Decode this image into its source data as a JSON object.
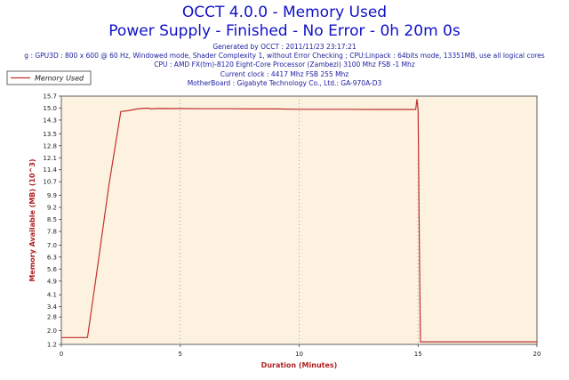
{
  "header": {
    "title": "OCCT 4.0.0 - Memory Used",
    "subtitle": "Power Supply - Finished - No Error - 0h 20m 0s",
    "generated": "Generated by OCCT : 2011/11/23 23:17:21",
    "config": "g : GPU3D : 800 x 600 @ 60 Hz, Windowed mode, Shader Complexity 1, without Error Checking ; CPU:Linpack : 64bits mode, 13351MB, use all logical cores",
    "cpu": "CPU : AMD FX(tm)-8120 Eight-Core Processor (Zambezi) 3100 Mhz FSB -1 Mhz",
    "clock": "Current clock : 4417 Mhz FSB 255 Mhz",
    "motherboard": "MotherBoard : Gigabyte Technology Co., Ltd.: GA-970A-D3"
  },
  "colors": {
    "title": "#1010c8",
    "plot_bg": "#fdf2e0",
    "line": "#c03030",
    "axis_label": "#b02020"
  },
  "chart_data": {
    "type": "line",
    "xlabel": "Duration (Minutes)",
    "ylabel": "Memory Available (MB) (10^3)",
    "xlim": [
      0,
      20
    ],
    "ylim": [
      1.2,
      15.7
    ],
    "x_ticks": [
      "0",
      "5",
      "10",
      "15",
      "20"
    ],
    "y_ticks": [
      "1.2",
      "2.0",
      "2.8",
      "3.4",
      "4.1",
      "4.9",
      "5.6",
      "6.3",
      "7.0",
      "7.8",
      "8.5",
      "9.2",
      "9.9",
      "10.7",
      "11.4",
      "12.1",
      "12.8",
      "13.5",
      "14.3",
      "15.0",
      "15.7"
    ],
    "grid": "vertical dotted at 5, 10, 15",
    "legend": "top-left",
    "series": [
      {
        "name": "Memory Used",
        "x": [
          0,
          1.0,
          1.1,
          1.5,
          2.0,
          2.5,
          2.8,
          3.2,
          3.6,
          3.8,
          4.0,
          5.0,
          6.0,
          7.0,
          8.0,
          9.0,
          10.0,
          11.0,
          12.0,
          13.0,
          14.0,
          14.9,
          14.95,
          15.0,
          15.05,
          15.1,
          15.15,
          15.2,
          16.0,
          17.0,
          18.0,
          19.0,
          20.0
        ],
        "y": [
          1.6,
          1.6,
          1.6,
          5.5,
          10.5,
          14.8,
          14.85,
          14.95,
          15.0,
          14.95,
          14.98,
          14.97,
          14.96,
          14.96,
          14.95,
          14.95,
          14.93,
          14.93,
          14.93,
          14.92,
          14.92,
          14.92,
          15.5,
          14.9,
          7.5,
          1.35,
          1.35,
          1.35,
          1.35,
          1.35,
          1.35,
          1.35,
          1.35
        ]
      }
    ]
  }
}
